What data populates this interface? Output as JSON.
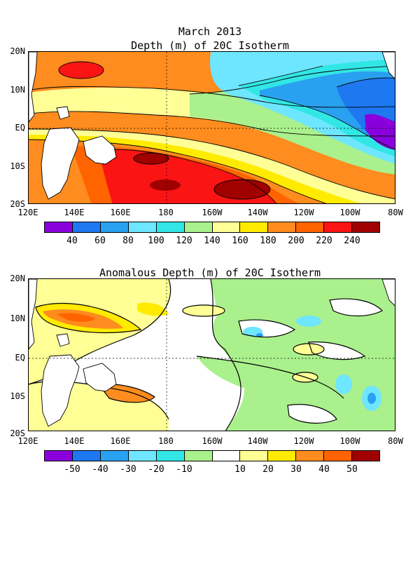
{
  "figure_title": "March 2013",
  "panels": [
    {
      "title": "Depth (m) of 20C Isotherm",
      "y_labels": [
        "20N",
        "10N",
        "EQ",
        "10S",
        "20S"
      ],
      "x_labels": [
        "120E",
        "140E",
        "160E",
        "180",
        "160W",
        "140W",
        "120W",
        "100W",
        "80W"
      ],
      "colorbar": {
        "colors": [
          "#8a00dc",
          "#1e78f0",
          "#2aa0f0",
          "#6ee6ff",
          "#32e6e6",
          "#aaf08c",
          "#ffff96",
          "#ffeb00",
          "#ff8c1e",
          "#ff6400",
          "#fa1414",
          "#a00000"
        ],
        "labels": [
          "40",
          "60",
          "80",
          "100",
          "120",
          "140",
          "160",
          "180",
          "200",
          "220",
          "240"
        ]
      }
    },
    {
      "title": "Anomalous Depth (m) of 20C Isotherm",
      "y_labels": [
        "20N",
        "10N",
        "EQ",
        "10S",
        "20S"
      ],
      "x_labels": [
        "120E",
        "140E",
        "160E",
        "180",
        "160W",
        "140W",
        "120W",
        "100W",
        "80W"
      ],
      "colorbar": {
        "colors": [
          "#8a00dc",
          "#1e78f0",
          "#2aa0f0",
          "#6ee6ff",
          "#32e6e6",
          "#aaf08c",
          "#ffffff",
          "#ffff96",
          "#ffeb00",
          "#ff8c1e",
          "#ff6400",
          "#a00000"
        ],
        "labels": [
          "-50",
          "-40",
          "-30",
          "-20",
          "-10",
          "10",
          "20",
          "30",
          "40",
          "50"
        ]
      }
    }
  ]
}
